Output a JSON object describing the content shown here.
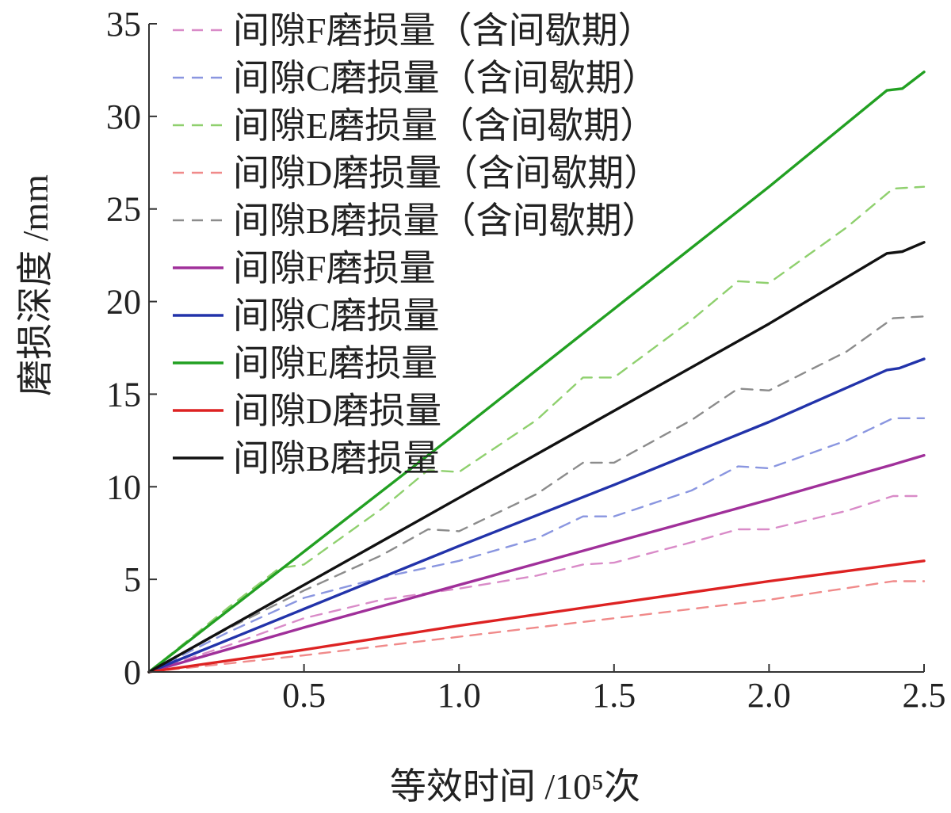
{
  "chart_data": {
    "type": "line",
    "xlabel": "等效时间 /10⁵次",
    "ylabel": "磨损深度 /mm",
    "xlim": [
      0,
      2.5
    ],
    "ylim": [
      0,
      35
    ],
    "xticks": [
      "0.5",
      "1.0",
      "1.5",
      "2.0",
      "2.5"
    ],
    "yticks": [
      "0",
      "5",
      "10",
      "15",
      "20",
      "25",
      "30",
      "35"
    ],
    "legend_position": "top-left",
    "series": [
      {
        "name": "间隙F磨损量（含间歇期）",
        "color": "#d98bc8",
        "dash": true,
        "x": [
          0,
          0.25,
          0.5,
          0.75,
          1.0,
          1.25,
          1.4,
          1.5,
          1.75,
          1.9,
          2.0,
          2.25,
          2.4,
          2.5
        ],
        "y": [
          0,
          1.4,
          2.9,
          3.9,
          4.5,
          5.2,
          5.8,
          5.9,
          7.0,
          7.7,
          7.7,
          8.7,
          9.5,
          9.5
        ]
      },
      {
        "name": "间隙C磨损量（含间歇期）",
        "color": "#8a96e0",
        "dash": true,
        "x": [
          0,
          0.25,
          0.5,
          0.75,
          1.0,
          1.25,
          1.4,
          1.5,
          1.75,
          1.9,
          2.0,
          2.25,
          2.4,
          2.5
        ],
        "y": [
          0,
          2.1,
          4.0,
          5.1,
          6.0,
          7.2,
          8.4,
          8.4,
          9.8,
          11.1,
          11.0,
          12.5,
          13.7,
          13.7
        ]
      },
      {
        "name": "间隙E磨损量（含间歇期）",
        "color": "#8fd06e",
        "dash": true,
        "x": [
          0,
          0.25,
          0.42,
          0.5,
          0.75,
          0.9,
          1.0,
          1.25,
          1.4,
          1.5,
          1.75,
          1.9,
          2.0,
          2.25,
          2.4,
          2.5
        ],
        "y": [
          0,
          3.4,
          5.6,
          5.8,
          8.8,
          10.9,
          10.8,
          13.6,
          15.9,
          15.9,
          19.0,
          21.1,
          21.0,
          24.0,
          26.1,
          26.2
        ]
      },
      {
        "name": "间隙D磨损量（含间歇期）",
        "color": "#f08a8a",
        "dash": true,
        "x": [
          0,
          0.5,
          1.0,
          1.5,
          2.0,
          2.4,
          2.5
        ],
        "y": [
          0,
          0.9,
          1.9,
          2.9,
          3.9,
          4.9,
          4.9
        ]
      },
      {
        "name": "间隙B磨损量（含间歇期）",
        "color": "#8c8c8c",
        "dash": true,
        "x": [
          0,
          0.25,
          0.5,
          0.75,
          0.9,
          1.0,
          1.25,
          1.4,
          1.5,
          1.75,
          1.9,
          2.0,
          2.25,
          2.4,
          2.5
        ],
        "y": [
          0,
          2.3,
          4.4,
          6.3,
          7.7,
          7.6,
          9.6,
          11.3,
          11.3,
          13.6,
          15.3,
          15.2,
          17.3,
          19.1,
          19.2
        ]
      },
      {
        "name": "间隙F磨损量",
        "color": "#a0309a",
        "dash": false,
        "x": [
          0,
          0.5,
          1.0,
          1.5,
          2.0,
          2.4,
          2.5
        ],
        "y": [
          0,
          2.4,
          4.7,
          7.0,
          9.3,
          11.2,
          11.7
        ]
      },
      {
        "name": "间隙C磨损量",
        "color": "#2233aa",
        "dash": false,
        "x": [
          0,
          0.5,
          1.0,
          1.5,
          2.0,
          2.38,
          2.42,
          2.5
        ],
        "y": [
          0,
          3.4,
          6.8,
          10.1,
          13.5,
          16.3,
          16.4,
          16.9
        ]
      },
      {
        "name": "间隙E磨损量",
        "color": "#22a022",
        "dash": false,
        "x": [
          0,
          0.5,
          1.0,
          1.5,
          2.0,
          2.38,
          2.43,
          2.5
        ],
        "y": [
          0,
          6.5,
          13.0,
          19.6,
          26.2,
          31.4,
          31.5,
          32.4
        ]
      },
      {
        "name": "间隙D磨损量",
        "color": "#dd2222",
        "dash": false,
        "x": [
          0,
          0.5,
          1.0,
          1.5,
          2.0,
          2.5
        ],
        "y": [
          0,
          1.2,
          2.5,
          3.7,
          4.9,
          6.0
        ]
      },
      {
        "name": "间隙B磨损量",
        "color": "#111111",
        "dash": false,
        "x": [
          0,
          0.5,
          1.0,
          1.5,
          2.0,
          2.38,
          2.43,
          2.5
        ],
        "y": [
          0,
          4.7,
          9.4,
          14.1,
          18.8,
          22.6,
          22.7,
          23.2
        ]
      }
    ]
  }
}
